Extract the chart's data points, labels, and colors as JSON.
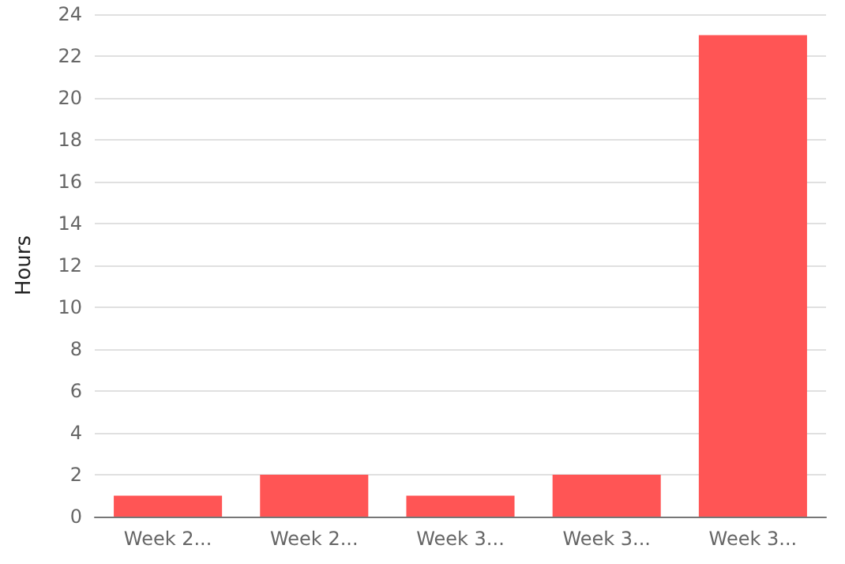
{
  "chart_data": {
    "type": "bar",
    "ylabel": "Hours",
    "categories": [
      "Week 2...",
      "Week 2...",
      "Week 3...",
      "Week 3...",
      "Week 3..."
    ],
    "values": [
      1,
      2,
      1,
      2,
      23
    ],
    "color": "#ff5555",
    "ylim": [
      0,
      24
    ],
    "yticks": [
      0,
      2,
      4,
      6,
      8,
      10,
      12,
      14,
      16,
      18,
      20,
      22,
      24
    ],
    "grid": "y"
  }
}
